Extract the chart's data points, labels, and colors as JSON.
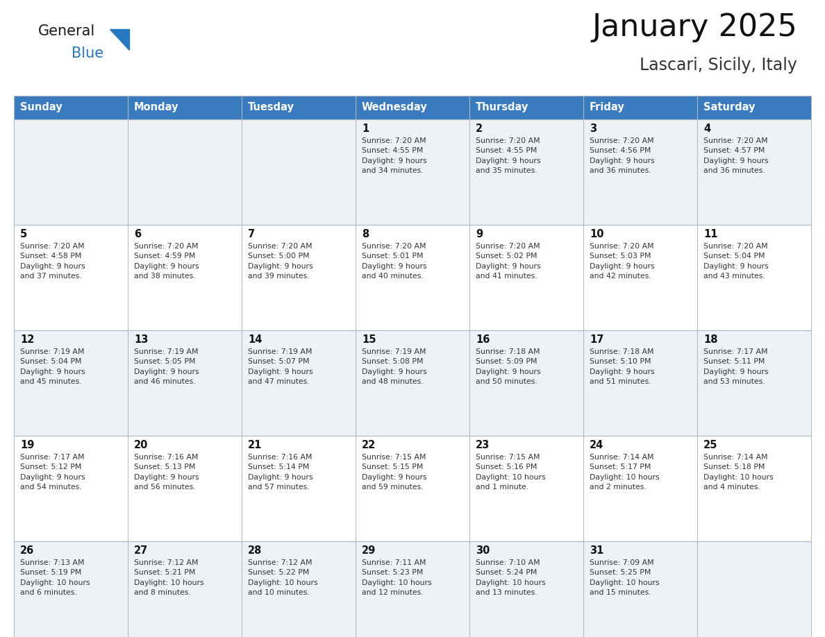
{
  "title": "January 2025",
  "subtitle": "Lascari, Sicily, Italy",
  "header_color": "#3a7abf",
  "header_text_color": "#ffffff",
  "cell_bg_even": "#edf2f7",
  "cell_bg_odd": "#ffffff",
  "days_of_week": [
    "Sunday",
    "Monday",
    "Tuesday",
    "Wednesday",
    "Thursday",
    "Friday",
    "Saturday"
  ],
  "weeks": [
    [
      {
        "day": "",
        "info": ""
      },
      {
        "day": "",
        "info": ""
      },
      {
        "day": "",
        "info": ""
      },
      {
        "day": "1",
        "info": "Sunrise: 7:20 AM\nSunset: 4:55 PM\nDaylight: 9 hours\nand 34 minutes."
      },
      {
        "day": "2",
        "info": "Sunrise: 7:20 AM\nSunset: 4:55 PM\nDaylight: 9 hours\nand 35 minutes."
      },
      {
        "day": "3",
        "info": "Sunrise: 7:20 AM\nSunset: 4:56 PM\nDaylight: 9 hours\nand 36 minutes."
      },
      {
        "day": "4",
        "info": "Sunrise: 7:20 AM\nSunset: 4:57 PM\nDaylight: 9 hours\nand 36 minutes."
      }
    ],
    [
      {
        "day": "5",
        "info": "Sunrise: 7:20 AM\nSunset: 4:58 PM\nDaylight: 9 hours\nand 37 minutes."
      },
      {
        "day": "6",
        "info": "Sunrise: 7:20 AM\nSunset: 4:59 PM\nDaylight: 9 hours\nand 38 minutes."
      },
      {
        "day": "7",
        "info": "Sunrise: 7:20 AM\nSunset: 5:00 PM\nDaylight: 9 hours\nand 39 minutes."
      },
      {
        "day": "8",
        "info": "Sunrise: 7:20 AM\nSunset: 5:01 PM\nDaylight: 9 hours\nand 40 minutes."
      },
      {
        "day": "9",
        "info": "Sunrise: 7:20 AM\nSunset: 5:02 PM\nDaylight: 9 hours\nand 41 minutes."
      },
      {
        "day": "10",
        "info": "Sunrise: 7:20 AM\nSunset: 5:03 PM\nDaylight: 9 hours\nand 42 minutes."
      },
      {
        "day": "11",
        "info": "Sunrise: 7:20 AM\nSunset: 5:04 PM\nDaylight: 9 hours\nand 43 minutes."
      }
    ],
    [
      {
        "day": "12",
        "info": "Sunrise: 7:19 AM\nSunset: 5:04 PM\nDaylight: 9 hours\nand 45 minutes."
      },
      {
        "day": "13",
        "info": "Sunrise: 7:19 AM\nSunset: 5:05 PM\nDaylight: 9 hours\nand 46 minutes."
      },
      {
        "day": "14",
        "info": "Sunrise: 7:19 AM\nSunset: 5:07 PM\nDaylight: 9 hours\nand 47 minutes."
      },
      {
        "day": "15",
        "info": "Sunrise: 7:19 AM\nSunset: 5:08 PM\nDaylight: 9 hours\nand 48 minutes."
      },
      {
        "day": "16",
        "info": "Sunrise: 7:18 AM\nSunset: 5:09 PM\nDaylight: 9 hours\nand 50 minutes."
      },
      {
        "day": "17",
        "info": "Sunrise: 7:18 AM\nSunset: 5:10 PM\nDaylight: 9 hours\nand 51 minutes."
      },
      {
        "day": "18",
        "info": "Sunrise: 7:17 AM\nSunset: 5:11 PM\nDaylight: 9 hours\nand 53 minutes."
      }
    ],
    [
      {
        "day": "19",
        "info": "Sunrise: 7:17 AM\nSunset: 5:12 PM\nDaylight: 9 hours\nand 54 minutes."
      },
      {
        "day": "20",
        "info": "Sunrise: 7:16 AM\nSunset: 5:13 PM\nDaylight: 9 hours\nand 56 minutes."
      },
      {
        "day": "21",
        "info": "Sunrise: 7:16 AM\nSunset: 5:14 PM\nDaylight: 9 hours\nand 57 minutes."
      },
      {
        "day": "22",
        "info": "Sunrise: 7:15 AM\nSunset: 5:15 PM\nDaylight: 9 hours\nand 59 minutes."
      },
      {
        "day": "23",
        "info": "Sunrise: 7:15 AM\nSunset: 5:16 PM\nDaylight: 10 hours\nand 1 minute."
      },
      {
        "day": "24",
        "info": "Sunrise: 7:14 AM\nSunset: 5:17 PM\nDaylight: 10 hours\nand 2 minutes."
      },
      {
        "day": "25",
        "info": "Sunrise: 7:14 AM\nSunset: 5:18 PM\nDaylight: 10 hours\nand 4 minutes."
      }
    ],
    [
      {
        "day": "26",
        "info": "Sunrise: 7:13 AM\nSunset: 5:19 PM\nDaylight: 10 hours\nand 6 minutes."
      },
      {
        "day": "27",
        "info": "Sunrise: 7:12 AM\nSunset: 5:21 PM\nDaylight: 10 hours\nand 8 minutes."
      },
      {
        "day": "28",
        "info": "Sunrise: 7:12 AM\nSunset: 5:22 PM\nDaylight: 10 hours\nand 10 minutes."
      },
      {
        "day": "29",
        "info": "Sunrise: 7:11 AM\nSunset: 5:23 PM\nDaylight: 10 hours\nand 12 minutes."
      },
      {
        "day": "30",
        "info": "Sunrise: 7:10 AM\nSunset: 5:24 PM\nDaylight: 10 hours\nand 13 minutes."
      },
      {
        "day": "31",
        "info": "Sunrise: 7:09 AM\nSunset: 5:25 PM\nDaylight: 10 hours\nand 15 minutes."
      },
      {
        "day": "",
        "info": ""
      }
    ]
  ],
  "logo_color_general": "#1a1a1a",
  "logo_color_blue": "#2878be",
  "logo_triangle_color": "#2878be",
  "fig_width": 11.88,
  "fig_height": 9.18,
  "dpi": 100
}
